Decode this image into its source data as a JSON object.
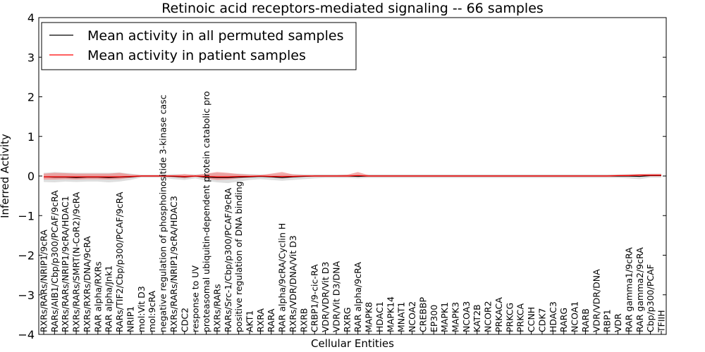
{
  "chart_data": {
    "type": "line",
    "title": "Retinoic acid receptors-mediated signaling -- 66 samples",
    "xlabel": "Cellular Entities",
    "ylabel": "Inferred Activity",
    "ylim": [
      -4,
      4
    ],
    "yticks": [
      -4,
      -3,
      -2,
      -1,
      0,
      1,
      2,
      3,
      4
    ],
    "legend_position": "top-left",
    "colors": {
      "permuted_line": "#000000",
      "patient_line": "#ff0000",
      "permuted_band": "#c8c8c8",
      "patient_band": "#f08080"
    },
    "categories": [
      "RXRs/RARs/NRIP1/9cRA",
      "RARs/AIB1/Cbp/p300/PCAF/9cRA",
      "RXRs/RARs/NRIP1/9cRA/HDAC1",
      "RXRs/RARs/SMRT(N-CoR2)/9cRA",
      "RXRs/RXRs/DNA/9cRA",
      "RAR alpha/RXRs",
      "RAR alpha/Jnk1",
      "RARs/TIF2/Cbp/p300/PCAF/9cRA",
      "NRIP1",
      "mol:Vit D3",
      "mol:9cRA",
      "negative regulation of phosphoinositide 3-kinase casc",
      "RXRs/RARs/NRIP1/9cRA/HDAC3",
      "CDC2",
      "response to UV",
      "proteasomal ubiquitin-dependent protein catabolic pro",
      "RXRs/RARs",
      "RARs/Src-1/Cbp/p300/PCAF/9cRA",
      "positive regulation of DNA binding",
      "AKT1",
      "RXRA",
      "RARA",
      "RAR alpha/9cRA/Cyclin H",
      "RXRs/VDR/DNA/Vit D3",
      "RXRB",
      "CRBP1/9-cic-RA",
      "VDR/VDR/Vit D3",
      "VDR/Vit D3/DNA",
      "RXRG",
      "RAR alpha/9cRA",
      "MAPK8",
      "HDAC1",
      "MAPK14",
      "MNAT1",
      "NCOA2",
      "CREBBP",
      "EP300",
      "MAPK1",
      "MAPK3",
      "NCOA3",
      "KAT2B",
      "NCOR2",
      "PRKACA",
      "PRKCG",
      "PRKCA",
      "CCNH",
      "CDK7",
      "HDAC3",
      "RARG",
      "NCOA1",
      "RARB",
      "VDR/VDR/DNA",
      "RBP1",
      "VDR",
      "RAR gamma1/9cRA",
      "RAR gamma2/9cRA",
      "Cbp/p300/PCAF",
      "TFIIH"
    ],
    "series": [
      {
        "name": "Mean activity in all permuted samples",
        "color": "#000000",
        "values": [
          -0.02,
          -0.03,
          -0.03,
          -0.04,
          -0.03,
          -0.03,
          -0.04,
          -0.03,
          -0.02,
          0.0,
          0.0,
          0.0,
          -0.01,
          -0.02,
          0.0,
          -0.03,
          -0.04,
          -0.04,
          -0.03,
          -0.02,
          -0.01,
          -0.02,
          -0.04,
          -0.02,
          -0.01,
          0.0,
          0.0,
          0.0,
          0.0,
          -0.01,
          0.0,
          0.0,
          0.0,
          0.0,
          0.0,
          0.0,
          0.0,
          0.0,
          0.0,
          0.0,
          0.0,
          0.0,
          0.0,
          0.0,
          0.0,
          0.0,
          0.0,
          0.0,
          0.0,
          0.0,
          0.0,
          0.0,
          0.0,
          0.0,
          0.0,
          -0.01,
          0.01,
          0.01
        ],
        "band_low": [
          -0.15,
          -0.16,
          -0.14,
          -0.15,
          -0.14,
          -0.14,
          -0.16,
          -0.14,
          -0.1,
          -0.04,
          -0.04,
          -0.04,
          -0.08,
          -0.1,
          -0.06,
          -0.12,
          -0.16,
          -0.18,
          -0.14,
          -0.1,
          -0.08,
          -0.1,
          -0.12,
          -0.1,
          -0.08,
          -0.06,
          -0.05,
          -0.05,
          -0.05,
          -0.06,
          -0.05,
          -0.05,
          -0.05,
          -0.05,
          -0.05,
          -0.05,
          -0.05,
          -0.05,
          -0.05,
          -0.05,
          -0.05,
          -0.05,
          -0.05,
          -0.05,
          -0.05,
          -0.05,
          -0.05,
          -0.05,
          -0.05,
          -0.05,
          -0.05,
          -0.05,
          -0.05,
          -0.05,
          -0.06,
          -0.08,
          -0.04,
          -0.04
        ],
        "band_high": [
          0.08,
          0.1,
          0.09,
          0.08,
          0.08,
          0.08,
          0.08,
          0.09,
          0.06,
          0.03,
          0.03,
          0.03,
          0.05,
          0.04,
          0.04,
          0.06,
          0.07,
          0.06,
          0.06,
          0.05,
          0.04,
          0.04,
          0.04,
          0.05,
          0.04,
          0.04,
          0.04,
          0.04,
          0.04,
          0.04,
          0.04,
          0.04,
          0.04,
          0.04,
          0.04,
          0.04,
          0.04,
          0.04,
          0.04,
          0.04,
          0.04,
          0.04,
          0.04,
          0.04,
          0.04,
          0.04,
          0.04,
          0.04,
          0.04,
          0.04,
          0.04,
          0.04,
          0.04,
          0.04,
          0.05,
          0.05,
          0.06,
          0.06
        ]
      },
      {
        "name": "Mean activity in patient samples",
        "color": "#ff0000",
        "values": [
          -0.02,
          -0.02,
          -0.02,
          -0.02,
          -0.02,
          -0.02,
          -0.02,
          -0.02,
          -0.01,
          0.0,
          0.0,
          0.0,
          0.0,
          -0.01,
          0.0,
          -0.01,
          -0.02,
          -0.02,
          -0.01,
          -0.01,
          0.0,
          -0.01,
          -0.01,
          -0.01,
          0.0,
          0.0,
          0.0,
          0.0,
          0.0,
          0.01,
          0.0,
          0.0,
          0.0,
          0.0,
          0.0,
          0.0,
          0.0,
          0.0,
          0.0,
          0.0,
          0.0,
          0.0,
          0.0,
          0.0,
          0.0,
          0.0,
          0.0,
          0.0,
          0.0,
          0.0,
          0.0,
          0.0,
          0.0,
          0.01,
          0.01,
          0.02,
          0.02,
          0.02
        ],
        "band_low": [
          -0.09,
          -0.09,
          -0.08,
          -0.09,
          -0.08,
          -0.08,
          -0.09,
          -0.08,
          -0.05,
          -0.02,
          -0.02,
          -0.02,
          -0.03,
          -0.06,
          -0.02,
          -0.06,
          -0.1,
          -0.09,
          -0.06,
          -0.04,
          -0.02,
          -0.04,
          -0.06,
          -0.04,
          -0.02,
          -0.02,
          -0.02,
          -0.02,
          -0.02,
          -0.02,
          -0.02,
          -0.02,
          -0.02,
          -0.02,
          -0.02,
          -0.02,
          -0.02,
          -0.02,
          -0.02,
          -0.02,
          -0.02,
          -0.02,
          -0.02,
          -0.02,
          -0.02,
          -0.02,
          -0.02,
          -0.02,
          -0.02,
          -0.02,
          -0.02,
          -0.02,
          -0.02,
          -0.02,
          -0.02,
          -0.01,
          -0.01,
          -0.01
        ],
        "band_high": [
          0.06,
          0.08,
          0.07,
          0.06,
          0.06,
          0.06,
          0.06,
          0.08,
          0.04,
          0.02,
          0.02,
          0.02,
          0.02,
          0.05,
          0.02,
          0.06,
          0.1,
          0.08,
          0.05,
          0.03,
          0.02,
          0.06,
          0.1,
          0.04,
          0.02,
          0.02,
          0.02,
          0.02,
          0.03,
          0.1,
          0.02,
          0.02,
          0.02,
          0.02,
          0.02,
          0.02,
          0.02,
          0.02,
          0.02,
          0.02,
          0.02,
          0.02,
          0.02,
          0.02,
          0.02,
          0.02,
          0.02,
          0.02,
          0.02,
          0.02,
          0.02,
          0.02,
          0.02,
          0.03,
          0.04,
          0.05,
          0.05,
          0.05
        ]
      }
    ]
  }
}
